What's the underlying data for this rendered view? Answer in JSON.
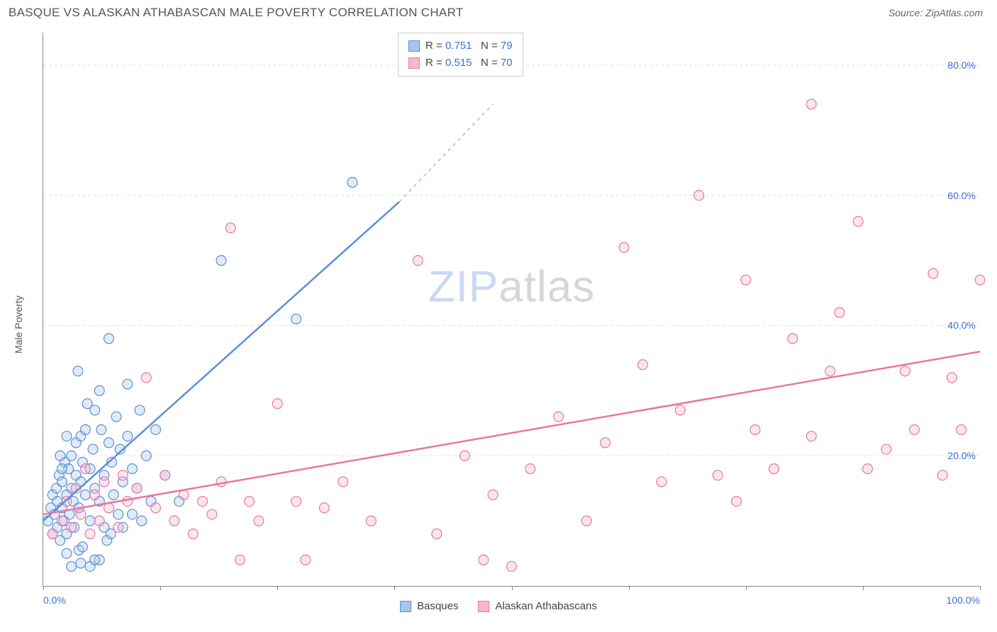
{
  "header": {
    "title": "BASQUE VS ALASKAN ATHABASCAN MALE POVERTY CORRELATION CHART",
    "source": "Source: ZipAtlas.com"
  },
  "chart": {
    "type": "scatter",
    "ylabel": "Male Poverty",
    "xlim": [
      0,
      100
    ],
    "ylim": [
      0,
      85
    ],
    "xtick_positions": [
      0,
      12.5,
      25,
      37.5,
      50,
      62.5,
      75,
      87.5,
      100
    ],
    "xtick_labels_shown": {
      "0": "0.0%",
      "100": "100.0%"
    },
    "ytick_positions": [
      20,
      40,
      60,
      80
    ],
    "ytick_labels": [
      "20.0%",
      "40.0%",
      "60.0%",
      "80.0%"
    ],
    "grid_color": "#dddddd",
    "axis_color": "#888888",
    "tick_label_color": "#3b6fd6",
    "background_color": "#ffffff",
    "marker_radius": 7,
    "marker_fill_opacity": 0.35,
    "watermark": {
      "part1": "ZIP",
      "part2": "atlas",
      "color1": "#c9d9f2",
      "color2": "#d7d7d7"
    }
  },
  "series": [
    {
      "name": "Basques",
      "stroke": "#5b8fd6",
      "fill": "#a8c6ec",
      "R": "0.751",
      "N": "79",
      "trend": {
        "x1": 0,
        "y1": 10,
        "x2": 38,
        "y2": 59,
        "dash_to_x": 48,
        "dash_to_y": 74
      },
      "points": [
        [
          0.5,
          10
        ],
        [
          0.8,
          12
        ],
        [
          1,
          14
        ],
        [
          1,
          8
        ],
        [
          1.2,
          11
        ],
        [
          1.4,
          15
        ],
        [
          1.5,
          9
        ],
        [
          1.5,
          13
        ],
        [
          1.7,
          17
        ],
        [
          1.8,
          7
        ],
        [
          2,
          12
        ],
        [
          2,
          16
        ],
        [
          2.2,
          10
        ],
        [
          2.3,
          19
        ],
        [
          2.5,
          14
        ],
        [
          2.5,
          8
        ],
        [
          2.7,
          18
        ],
        [
          2.8,
          11
        ],
        [
          3,
          15
        ],
        [
          3,
          20
        ],
        [
          3.2,
          13
        ],
        [
          3.3,
          9
        ],
        [
          3.5,
          17
        ],
        [
          3.5,
          22
        ],
        [
          3.7,
          33
        ],
        [
          3.8,
          12
        ],
        [
          4,
          16
        ],
        [
          4,
          23
        ],
        [
          4.2,
          19
        ],
        [
          4.5,
          14
        ],
        [
          4.5,
          24
        ],
        [
          4.7,
          28
        ],
        [
          5,
          18
        ],
        [
          5,
          10
        ],
        [
          5.3,
          21
        ],
        [
          5.5,
          15
        ],
        [
          5.5,
          27
        ],
        [
          6,
          13
        ],
        [
          6,
          30
        ],
        [
          6.2,
          24
        ],
        [
          6.5,
          17
        ],
        [
          6.5,
          9
        ],
        [
          7,
          22
        ],
        [
          7,
          38
        ],
        [
          7.3,
          19
        ],
        [
          7.5,
          14
        ],
        [
          7.8,
          26
        ],
        [
          8,
          11
        ],
        [
          8.2,
          21
        ],
        [
          8.5,
          16
        ],
        [
          9,
          23
        ],
        [
          9,
          31
        ],
        [
          9.5,
          18
        ],
        [
          10,
          15
        ],
        [
          10.3,
          27
        ],
        [
          11,
          20
        ],
        [
          11.5,
          13
        ],
        [
          12,
          24
        ],
        [
          13,
          17
        ],
        [
          14.5,
          13
        ],
        [
          3,
          3
        ],
        [
          5,
          3
        ],
        [
          4,
          3.5
        ],
        [
          6,
          4
        ],
        [
          2.5,
          5
        ],
        [
          3.8,
          5.5
        ],
        [
          19,
          50
        ],
        [
          27,
          41
        ],
        [
          33,
          62
        ],
        [
          5.5,
          4
        ],
        [
          4.2,
          6
        ],
        [
          6.8,
          7
        ],
        [
          2,
          18
        ],
        [
          1.8,
          20
        ],
        [
          2.5,
          23
        ],
        [
          8.5,
          9
        ],
        [
          7.2,
          8
        ],
        [
          9.5,
          11
        ],
        [
          10.5,
          10
        ]
      ]
    },
    {
      "name": "Alaskan Athabascans",
      "stroke": "#e8779e",
      "fill": "#f5b8cd",
      "R": "0.515",
      "N": "70",
      "trend": {
        "x1": 0,
        "y1": 11,
        "x2": 100,
        "y2": 36
      },
      "points": [
        [
          1,
          8
        ],
        [
          2,
          10
        ],
        [
          2.5,
          13
        ],
        [
          3,
          9
        ],
        [
          3.5,
          15
        ],
        [
          4,
          11
        ],
        [
          4.5,
          18
        ],
        [
          5,
          8
        ],
        [
          5.5,
          14
        ],
        [
          6,
          10
        ],
        [
          6.5,
          16
        ],
        [
          7,
          12
        ],
        [
          8,
          9
        ],
        [
          8.5,
          17
        ],
        [
          9,
          13
        ],
        [
          10,
          15
        ],
        [
          11,
          32
        ],
        [
          12,
          12
        ],
        [
          13,
          17
        ],
        [
          14,
          10
        ],
        [
          15,
          14
        ],
        [
          16,
          8
        ],
        [
          17,
          13
        ],
        [
          18,
          11
        ],
        [
          19,
          16
        ],
        [
          20,
          55
        ],
        [
          21,
          4
        ],
        [
          22,
          13
        ],
        [
          23,
          10
        ],
        [
          25,
          28
        ],
        [
          27,
          13
        ],
        [
          28,
          4
        ],
        [
          30,
          12
        ],
        [
          32,
          16
        ],
        [
          35,
          10
        ],
        [
          40,
          50
        ],
        [
          42,
          8
        ],
        [
          45,
          20
        ],
        [
          47,
          4
        ],
        [
          48,
          14
        ],
        [
          50,
          3
        ],
        [
          52,
          18
        ],
        [
          55,
          26
        ],
        [
          58,
          10
        ],
        [
          60,
          22
        ],
        [
          62,
          52
        ],
        [
          64,
          34
        ],
        [
          66,
          16
        ],
        [
          68,
          27
        ],
        [
          70,
          60
        ],
        [
          72,
          17
        ],
        [
          74,
          13
        ],
        [
          75,
          47
        ],
        [
          76,
          24
        ],
        [
          78,
          18
        ],
        [
          80,
          38
        ],
        [
          82,
          23
        ],
        [
          84,
          33
        ],
        [
          85,
          42
        ],
        [
          87,
          56
        ],
        [
          88,
          18
        ],
        [
          90,
          21
        ],
        [
          92,
          33
        ],
        [
          93,
          24
        ],
        [
          95,
          48
        ],
        [
          96,
          17
        ],
        [
          98,
          24
        ],
        [
          82,
          74
        ],
        [
          100,
          47
        ],
        [
          97,
          32
        ]
      ]
    }
  ],
  "legend": {
    "series1_label": "Basques",
    "series2_label": "Alaskan Athabascans"
  }
}
